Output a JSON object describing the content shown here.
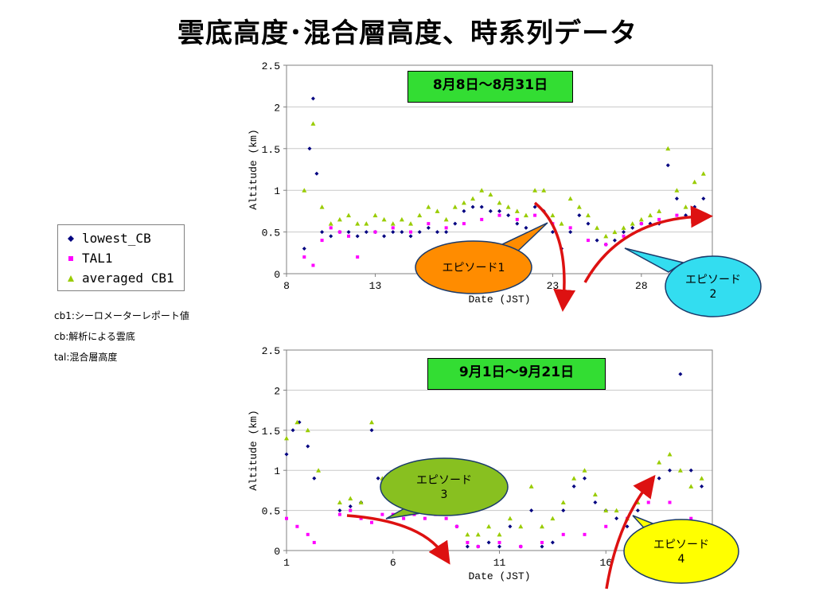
{
  "title": "雲底高度･混合層高度、時系列データ",
  "legend": {
    "items": [
      {
        "label": "lowest_CB",
        "color": "#000080",
        "marker": "diamond"
      },
      {
        "label": "TAL1",
        "color": "#ff00ff",
        "marker": "square"
      },
      {
        "label": "averaged CB1",
        "color": "#99cc00",
        "marker": "triangle"
      }
    ]
  },
  "notes": [
    "cb1:シーロメーターレポート値",
    "cb:解析による雲底",
    "tal:混合層高度"
  ],
  "colors": {
    "lowest_cb": "#000080",
    "tal1": "#ff00ff",
    "averaged_cb1": "#99cc00",
    "arrow": "#dd1111",
    "episode1": "#ff8c00",
    "episode2": "#33ddf0",
    "episode3": "#88c020",
    "episode4": "#ffff00",
    "period_box": "#33dd33"
  },
  "chart_data": [
    {
      "type": "scatter",
      "period_label": "8月8日～8月31日",
      "xlabel": "Date (JST)",
      "ylabel": "Altitude (km)",
      "xlim": [
        8,
        32
      ],
      "ylim": [
        0,
        2.5
      ],
      "xticks": [
        8,
        13,
        18,
        23,
        28
      ],
      "xtick_labels": [
        "8",
        "13",
        "",
        "23",
        "28"
      ],
      "yticks": [
        0,
        0.5,
        1,
        1.5,
        2,
        2.5
      ],
      "ytick_labels": [
        "0",
        "0.5",
        "1",
        "1.5",
        "2",
        "2.5"
      ],
      "grid": true,
      "series": [
        {
          "name": "lowest_CB",
          "x": [
            9.0,
            9.3,
            9.5,
            9.7,
            10.0,
            10.5,
            11.0,
            11.5,
            12.0,
            12.5,
            13.0,
            13.5,
            14.0,
            14.5,
            15.0,
            15.5,
            16.0,
            16.5,
            17.0,
            17.5,
            18.0,
            18.5,
            19.0,
            19.5,
            20.0,
            20.5,
            21.0,
            21.5,
            22.0,
            22.5,
            23.0,
            23.5,
            24.0,
            24.5,
            25.0,
            25.5,
            26.0,
            26.5,
            27.0,
            27.5,
            28.0,
            28.5,
            29.0,
            29.5,
            30.0,
            30.5,
            31.0,
            31.5
          ],
          "y": [
            0.3,
            1.5,
            2.1,
            1.2,
            0.5,
            0.45,
            0.5,
            0.5,
            0.45,
            0.5,
            0.5,
            0.45,
            0.5,
            0.5,
            0.45,
            0.5,
            0.55,
            0.5,
            0.5,
            0.6,
            0.75,
            0.8,
            0.8,
            0.75,
            0.75,
            0.7,
            0.6,
            0.55,
            0.8,
            0.75,
            0.5,
            0.3,
            0.5,
            0.7,
            0.6,
            0.4,
            0.35,
            0.4,
            0.5,
            0.55,
            0.6,
            0.6,
            0.6,
            1.3,
            0.9,
            0.7,
            0.8,
            0.9
          ]
        },
        {
          "name": "TAL1",
          "x": [
            9.0,
            9.5,
            10.0,
            10.5,
            11.0,
            11.5,
            12.0,
            13.0,
            14.0,
            15.0,
            16.0,
            17.0,
            18.0,
            19.0,
            20.0,
            21.0,
            22.0,
            23.0,
            24.0,
            25.0,
            26.0,
            27.0,
            28.0,
            29.0,
            30.0,
            31.0
          ],
          "y": [
            0.2,
            0.1,
            0.4,
            0.55,
            0.5,
            0.45,
            0.2,
            0.5,
            0.55,
            0.5,
            0.6,
            0.55,
            0.6,
            0.65,
            0.7,
            0.65,
            0.7,
            0.6,
            0.55,
            0.4,
            0.35,
            0.45,
            0.6,
            0.65,
            0.7,
            0.7
          ]
        },
        {
          "name": "averaged CB1",
          "x": [
            9.0,
            9.5,
            10.0,
            10.5,
            11.0,
            11.5,
            12.0,
            12.5,
            13.0,
            13.5,
            14.0,
            14.5,
            15.0,
            15.5,
            16.0,
            16.5,
            17.0,
            17.5,
            18.0,
            18.5,
            19.0,
            19.5,
            20.0,
            20.5,
            21.0,
            21.5,
            22.0,
            22.5,
            23.0,
            23.5,
            24.0,
            24.5,
            25.0,
            25.5,
            26.0,
            26.5,
            27.0,
            27.5,
            28.0,
            28.5,
            29.0,
            29.5,
            30.0,
            30.5,
            31.0,
            31.5
          ],
          "y": [
            1.0,
            1.8,
            0.8,
            0.6,
            0.65,
            0.7,
            0.6,
            0.6,
            0.7,
            0.65,
            0.6,
            0.65,
            0.6,
            0.7,
            0.8,
            0.75,
            0.65,
            0.8,
            0.85,
            0.9,
            1.0,
            0.95,
            0.85,
            0.8,
            0.75,
            0.7,
            1.0,
            1.0,
            0.7,
            0.6,
            0.9,
            0.8,
            0.7,
            0.55,
            0.45,
            0.5,
            0.55,
            0.6,
            0.65,
            0.7,
            0.75,
            1.5,
            1.0,
            0.8,
            1.1,
            1.2
          ]
        }
      ],
      "annotations": [
        {
          "label": "エピソード1"
        },
        {
          "label": "エピソード\n2"
        }
      ]
    },
    {
      "type": "scatter",
      "period_label": "9月1日～9月21日",
      "xlabel": "Date (JST)",
      "ylabel": "Altitude (km)",
      "xlim": [
        1,
        21
      ],
      "ylim": [
        0,
        2.5
      ],
      "xticks": [
        1,
        6,
        11,
        16
      ],
      "xtick_labels": [
        "1",
        "6",
        "11",
        "16"
      ],
      "yticks": [
        0,
        0.5,
        1,
        1.5,
        2,
        2.5
      ],
      "ytick_labels": [
        "0",
        "0.5",
        "1",
        "1.5",
        "2",
        "2.5"
      ],
      "grid": true,
      "series": [
        {
          "name": "lowest_CB",
          "x": [
            1.0,
            1.3,
            1.6,
            2.0,
            2.3,
            3.5,
            4.0,
            4.5,
            5.0,
            5.3,
            5.6,
            6.0,
            6.5,
            7.0,
            7.5,
            8.0,
            8.5,
            9.0,
            9.5,
            10.0,
            10.5,
            11.0,
            11.5,
            12.0,
            12.5,
            13.0,
            13.5,
            14.0,
            14.5,
            15.0,
            15.5,
            16.0,
            16.5,
            17.0,
            17.5,
            18.0,
            18.5,
            19.0,
            19.5,
            20.0,
            20.5
          ],
          "y": [
            1.2,
            1.5,
            1.6,
            1.3,
            0.9,
            0.5,
            0.55,
            0.6,
            1.5,
            0.9,
            0.7,
            0.6,
            0.7,
            0.7,
            0.65,
            0.6,
            0.5,
            0.3,
            0.05,
            0.05,
            0.1,
            0.05,
            0.3,
            0.05,
            0.5,
            0.05,
            0.1,
            0.5,
            0.8,
            0.9,
            0.6,
            0.5,
            0.4,
            0.3,
            0.5,
            0.7,
            0.9,
            1.0,
            2.2,
            1.0,
            0.8
          ]
        },
        {
          "name": "TAL1",
          "x": [
            1.0,
            1.5,
            2.0,
            2.3,
            3.5,
            4.0,
            4.5,
            5.0,
            5.5,
            6.0,
            6.5,
            7.0,
            7.5,
            8.0,
            8.5,
            9.0,
            9.5,
            10.0,
            11.0,
            12.0,
            13.0,
            14.0,
            15.0,
            16.0,
            17.0,
            18.0,
            19.0,
            20.0
          ],
          "y": [
            0.4,
            0.3,
            0.2,
            0.1,
            0.45,
            0.5,
            0.4,
            0.35,
            0.45,
            0.45,
            0.4,
            0.45,
            0.4,
            0.45,
            0.4,
            0.3,
            0.1,
            0.05,
            0.1,
            0.05,
            0.1,
            0.2,
            0.2,
            0.3,
            0.4,
            0.6,
            0.6,
            0.4
          ]
        },
        {
          "name": "averaged CB1",
          "x": [
            1.0,
            1.5,
            2.0,
            2.5,
            3.5,
            4.0,
            4.5,
            5.0,
            5.5,
            6.0,
            6.5,
            7.0,
            7.5,
            8.0,
            8.5,
            9.0,
            9.5,
            10.0,
            10.5,
            11.0,
            11.5,
            12.0,
            12.5,
            13.0,
            13.5,
            14.0,
            14.5,
            15.0,
            15.5,
            16.0,
            16.5,
            17.0,
            17.5,
            18.0,
            18.5,
            19.0,
            19.5,
            20.0,
            20.5
          ],
          "y": [
            1.4,
            1.6,
            1.5,
            1.0,
            0.6,
            0.65,
            0.6,
            1.6,
            0.9,
            0.8,
            0.75,
            0.8,
            0.85,
            0.8,
            0.7,
            0.5,
            0.2,
            0.2,
            0.3,
            0.2,
            0.4,
            0.3,
            0.8,
            0.3,
            0.4,
            0.6,
            0.9,
            1.0,
            0.7,
            0.5,
            0.5,
            0.4,
            0.6,
            0.8,
            1.1,
            1.2,
            1.0,
            0.8,
            0.9
          ]
        }
      ],
      "annotations": [
        {
          "label": "エピソード\n3"
        },
        {
          "label": "エピソード\n4"
        }
      ]
    }
  ]
}
